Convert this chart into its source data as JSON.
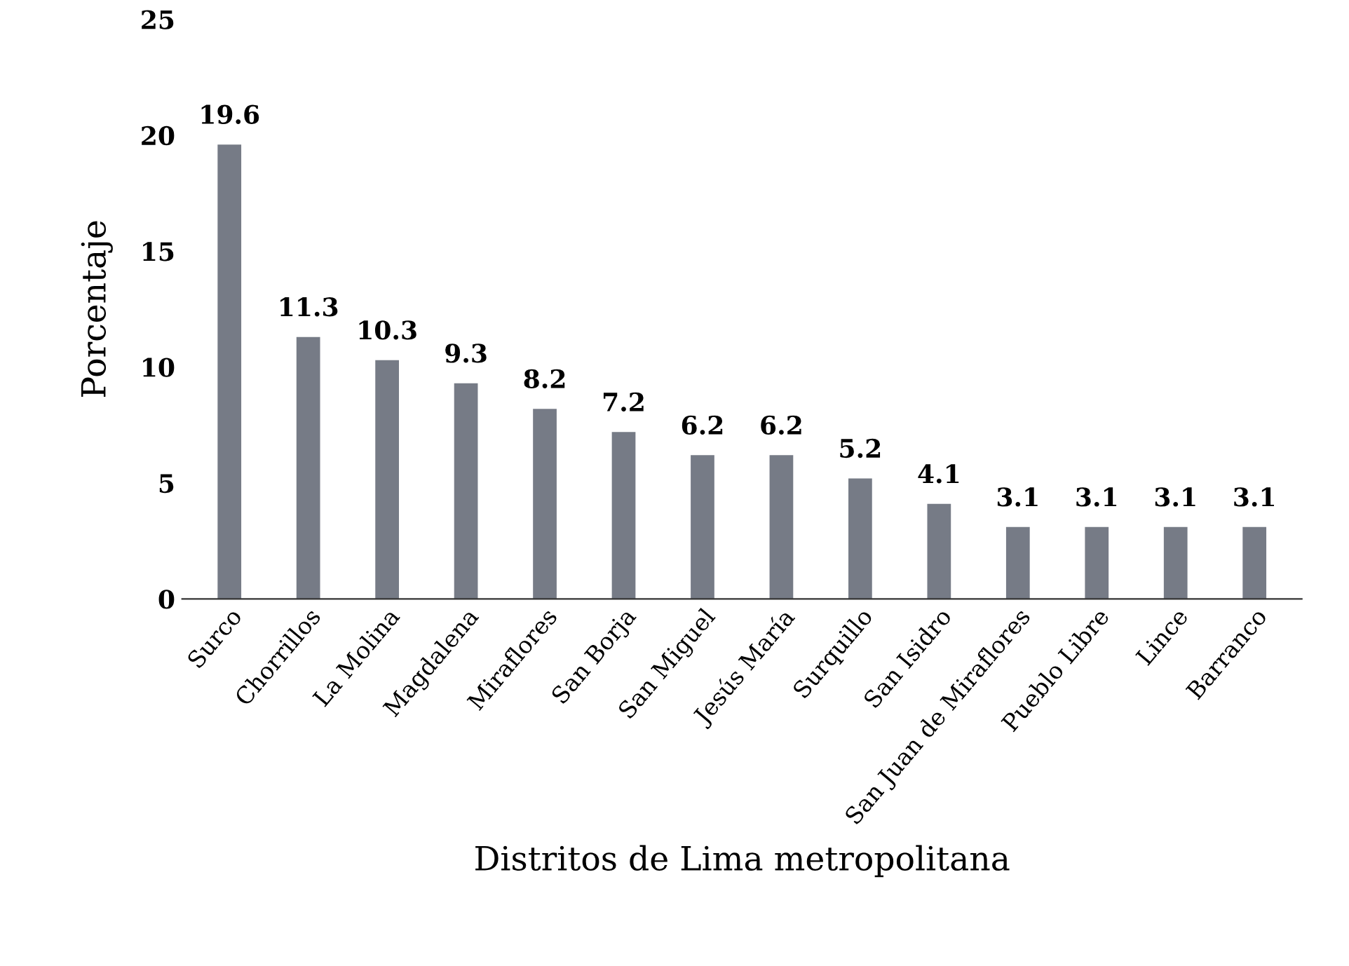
{
  "chart_data": {
    "type": "bar",
    "xlabel": "Distritos de Lima metropolitana",
    "ylabel": "Porcentaje",
    "categories": [
      "Surco",
      "Chorrillos",
      "La Molina",
      "Magdalena",
      "Miraflores",
      "San Borja",
      "San Miguel",
      "Jesús María",
      "Surquillo",
      "San Isidro",
      "San Juan de Miraflores",
      "Pueblo Libre",
      "Lince",
      "Barranco"
    ],
    "values": [
      19.6,
      11.3,
      10.3,
      9.3,
      8.2,
      7.2,
      6.2,
      6.2,
      5.2,
      4.1,
      3.1,
      3.1,
      3.1,
      3.1
    ],
    "color": "#767b86",
    "ylim": [
      0,
      25
    ],
    "yticks": [
      0,
      5,
      10,
      15,
      20,
      25
    ],
    "grid": false,
    "data_labels": true
  }
}
